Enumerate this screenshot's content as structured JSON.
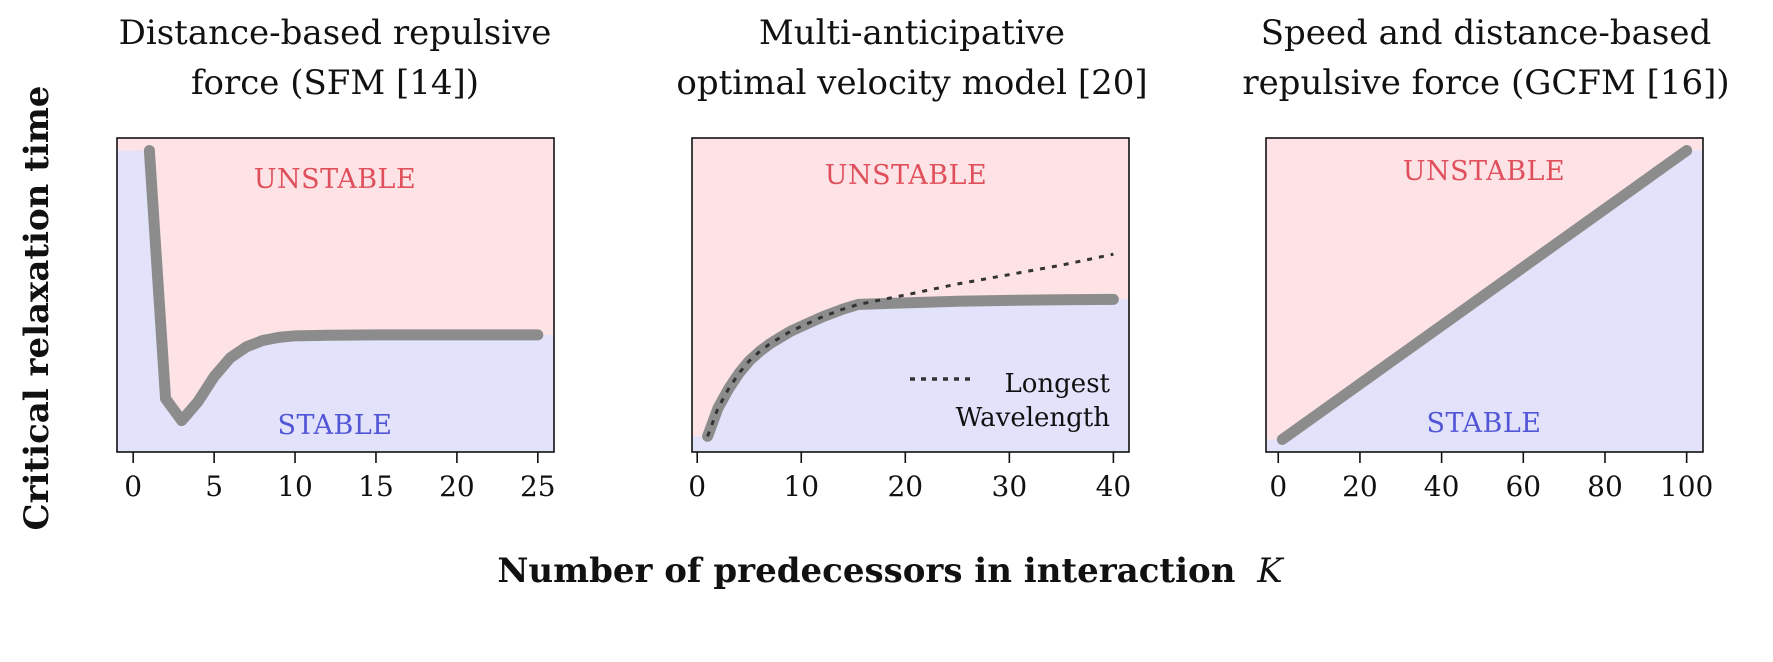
{
  "figure": {
    "xlabel": "Number of predecessors in interaction",
    "xlabel_symbol": "K",
    "ylabel": "Critical relaxation time"
  },
  "colors": {
    "stable_fill": "#e2e3fb",
    "unstable_fill": "#fde3e5",
    "stable_text": "#5256d6",
    "unstable_text": "#e0505c",
    "curve": "#8c8c8c",
    "dotted": "#333333"
  },
  "chart_data": [
    {
      "type": "line",
      "title_lines": [
        "Distance-based repulsive",
        "force (SFM [14])"
      ],
      "xlim": [
        -1,
        26
      ],
      "ylim": [
        0,
        1
      ],
      "x_ticks": [
        "0",
        "5",
        "10",
        "15",
        "20",
        "25"
      ],
      "y_ticks": [],
      "region_labels": {
        "unstable": "UNSTABLE",
        "stable": "STABLE"
      },
      "series": [
        {
          "x": [
            1,
            2,
            3,
            4,
            5,
            6,
            7,
            8,
            9,
            10,
            12,
            15,
            20,
            25
          ],
          "y": [
            0.96,
            0.17,
            0.1,
            0.16,
            0.24,
            0.3,
            0.335,
            0.355,
            0.365,
            0.37,
            0.372,
            0.373,
            0.373,
            0.373
          ]
        }
      ]
    },
    {
      "type": "line",
      "title_lines": [
        "Multi-anticipative",
        "optimal velocity model [20]"
      ],
      "xlim": [
        -0.5,
        41.5
      ],
      "ylim": [
        0,
        1
      ],
      "x_ticks": [
        "0",
        "10",
        "20",
        "30",
        "40"
      ],
      "y_ticks": [],
      "region_labels": {
        "unstable": "UNSTABLE",
        "stable": ""
      },
      "legend": {
        "entry": [
          "Longest",
          "Wavelength"
        ],
        "placement": "bottom-right"
      },
      "series": [
        {
          "x": [
            1,
            2,
            3,
            4,
            5,
            6,
            7,
            8,
            9,
            10,
            12,
            14,
            15.5,
            20,
            25,
            30,
            35,
            40
          ],
          "y": [
            0.05,
            0.14,
            0.2,
            0.25,
            0.29,
            0.32,
            0.345,
            0.365,
            0.385,
            0.4,
            0.43,
            0.455,
            0.47,
            0.475,
            0.48,
            0.483,
            0.485,
            0.486
          ]
        },
        {
          "x": [
            15.5,
            20,
            25,
            30,
            35,
            40
          ],
          "y": [
            0.47,
            0.5,
            0.535,
            0.565,
            0.595,
            0.63
          ]
        }
      ]
    },
    {
      "type": "line",
      "title_lines": [
        "Speed and distance-based",
        "repulsive force (GCFM [16])"
      ],
      "xlim": [
        -3,
        104
      ],
      "ylim": [
        0,
        1
      ],
      "x_ticks": [
        "0",
        "20",
        "40",
        "60",
        "80",
        "100"
      ],
      "y_ticks": [],
      "region_labels": {
        "unstable": "UNSTABLE",
        "stable": "STABLE"
      },
      "series": [
        {
          "x": [
            1,
            100
          ],
          "y": [
            0.04,
            0.96
          ]
        }
      ]
    }
  ]
}
